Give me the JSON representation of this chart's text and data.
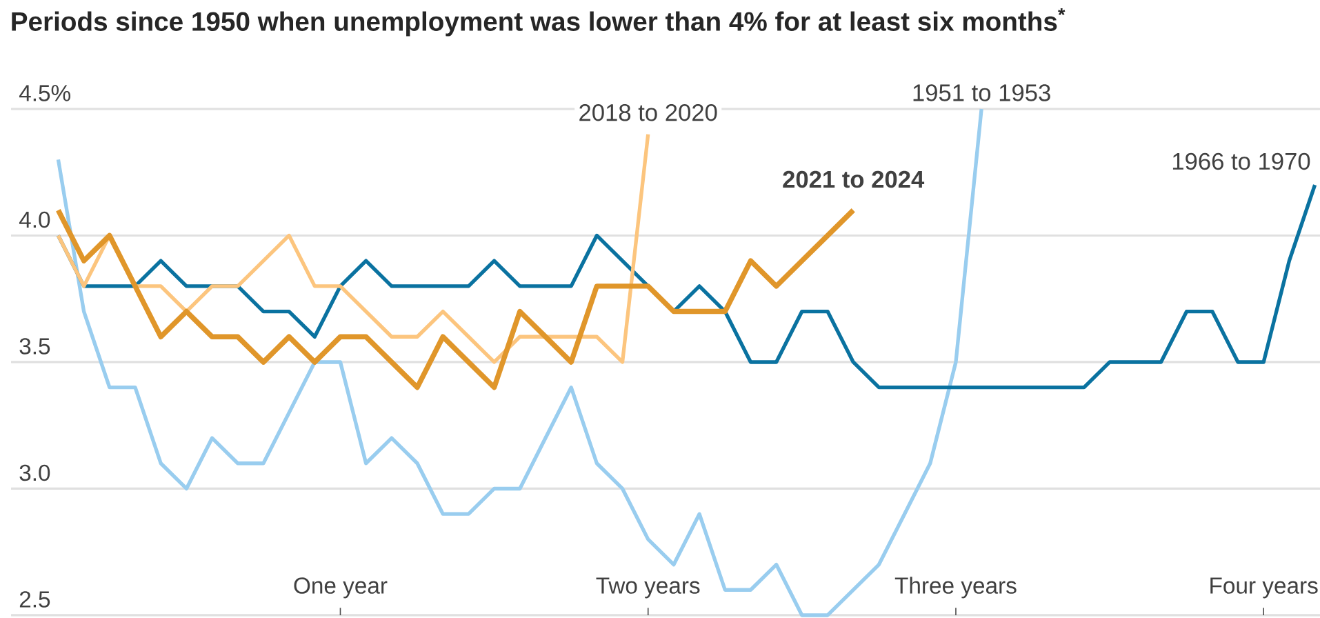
{
  "chart_data": {
    "type": "line",
    "title": "Periods since 1950 when unemployment was lower than 4% for at least six months$^{*}$",
    "categories": [
      null,
      null,
      null,
      null,
      null,
      null,
      null,
      null,
      null,
      null,
      null,
      "One year",
      null,
      null,
      null,
      null,
      null,
      null,
      null,
      null,
      null,
      null,
      null,
      "Two years",
      null,
      null,
      null,
      null,
      null,
      null,
      null,
      null,
      null,
      null,
      null,
      "Three years",
      null,
      null,
      null,
      null,
      null,
      null,
      null,
      null,
      null,
      null,
      null,
      "Four years",
      null,
      null
    ],
    "ylim": [
      2.5,
      4.5
    ],
    "yticks": [
      {
        "value": 2.5,
        "label": "2.5"
      },
      {
        "value": 3.0,
        "label": "3.0"
      },
      {
        "value": 3.5,
        "label": "3.5"
      },
      {
        "value": 4.0,
        "label": "4.0"
      },
      {
        "value": 4.5,
        "label": "4.5%"
      }
    ],
    "grid": "y",
    "line_style": "solid",
    "series": [
      {
        "name": "1951 to 1953",
        "color": "#99cdef",
        "values": [
          4.3,
          3.7,
          3.4,
          3.4,
          3.1,
          3.0,
          3.2,
          3.1,
          3.1,
          3.3,
          3.5,
          3.5,
          3.1,
          3.2,
          3.1,
          2.9,
          2.9,
          3.0,
          3.0,
          3.2,
          3.4,
          3.1,
          3.0,
          2.8,
          2.7,
          2.9,
          2.6,
          2.6,
          2.7,
          2.5,
          2.5,
          2.6,
          2.7,
          2.9,
          3.1,
          3.5,
          4.5,
          null,
          null,
          null,
          null,
          null,
          null,
          null,
          null,
          null,
          null,
          null,
          null,
          null
        ]
      },
      {
        "name": "1966 to 1970",
        "color": "#0a72a0",
        "values": [
          4.0,
          3.8,
          3.8,
          3.8,
          3.9,
          3.8,
          3.8,
          3.8,
          3.7,
          3.7,
          3.6,
          3.8,
          3.9,
          3.8,
          3.8,
          3.8,
          3.8,
          3.9,
          3.8,
          3.8,
          3.8,
          4.0,
          3.9,
          3.8,
          3.7,
          3.8,
          3.7,
          3.5,
          3.5,
          3.7,
          3.7,
          3.5,
          3.4,
          3.4,
          3.4,
          3.4,
          3.4,
          3.4,
          3.4,
          3.4,
          3.4,
          3.5,
          3.5,
          3.5,
          3.7,
          3.7,
          3.5,
          3.5,
          3.9,
          4.2
        ]
      },
      {
        "name": "2018 to 2020",
        "color": "#fcc57e",
        "values": [
          4.0,
          3.8,
          4.0,
          3.8,
          3.8,
          3.7,
          3.8,
          3.8,
          3.9,
          4.0,
          3.8,
          3.8,
          3.7,
          3.6,
          3.6,
          3.7,
          3.6,
          3.5,
          3.6,
          3.6,
          3.6,
          3.6,
          3.5,
          4.4,
          null,
          null,
          null,
          null,
          null,
          null,
          null,
          null,
          null,
          null,
          null,
          null,
          null,
          null,
          null,
          null,
          null,
          null,
          null,
          null,
          null,
          null,
          null,
          null,
          null,
          null
        ]
      },
      {
        "name": "2021 to 2024",
        "color": "#e0962a",
        "values": [
          4.1,
          3.9,
          4.0,
          3.8,
          3.6,
          3.7,
          3.6,
          3.6,
          3.5,
          3.6,
          3.5,
          3.6,
          3.6,
          3.5,
          3.4,
          3.6,
          3.5,
          3.4,
          3.7,
          3.6,
          3.5,
          3.8,
          3.8,
          3.8,
          3.7,
          3.7,
          3.7,
          3.9,
          3.8,
          3.9,
          4.0,
          4.1,
          null,
          null,
          null,
          null,
          null,
          null,
          null,
          null,
          null,
          null,
          null,
          null,
          null,
          null,
          null,
          null,
          null,
          null
        ]
      }
    ]
  }
}
